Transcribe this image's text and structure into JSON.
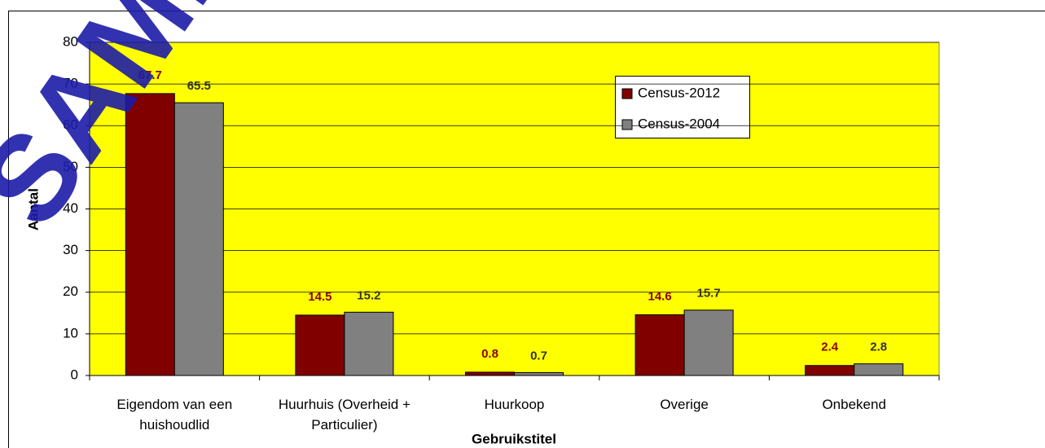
{
  "chart_data": {
    "type": "bar",
    "watermark": "SAMPLE",
    "x_label": "Gebruikstitel",
    "y_label": "Aantal",
    "categories": [
      "Eigendom van een huishoudlid",
      "Huurhuis (Overheid + Particulier)",
      "Huurkoop",
      "Overige",
      "Onbekend"
    ],
    "series": [
      {
        "name": "Census-2012",
        "color": "#800000",
        "label_color": "#8b0000",
        "values": [
          67.7,
          14.5,
          0.8,
          14.6,
          2.4
        ]
      },
      {
        "name": "Census-2004",
        "color": "#808080",
        "label_color": "#333333",
        "values": [
          65.5,
          15.2,
          0.7,
          15.7,
          2.8
        ]
      }
    ],
    "ylim": [
      0,
      80
    ],
    "yticks": [
      0,
      10,
      20,
      30,
      40,
      50,
      60,
      70,
      80
    ],
    "grid": true,
    "plot_background": "#ffff00",
    "legend": "upper right"
  }
}
